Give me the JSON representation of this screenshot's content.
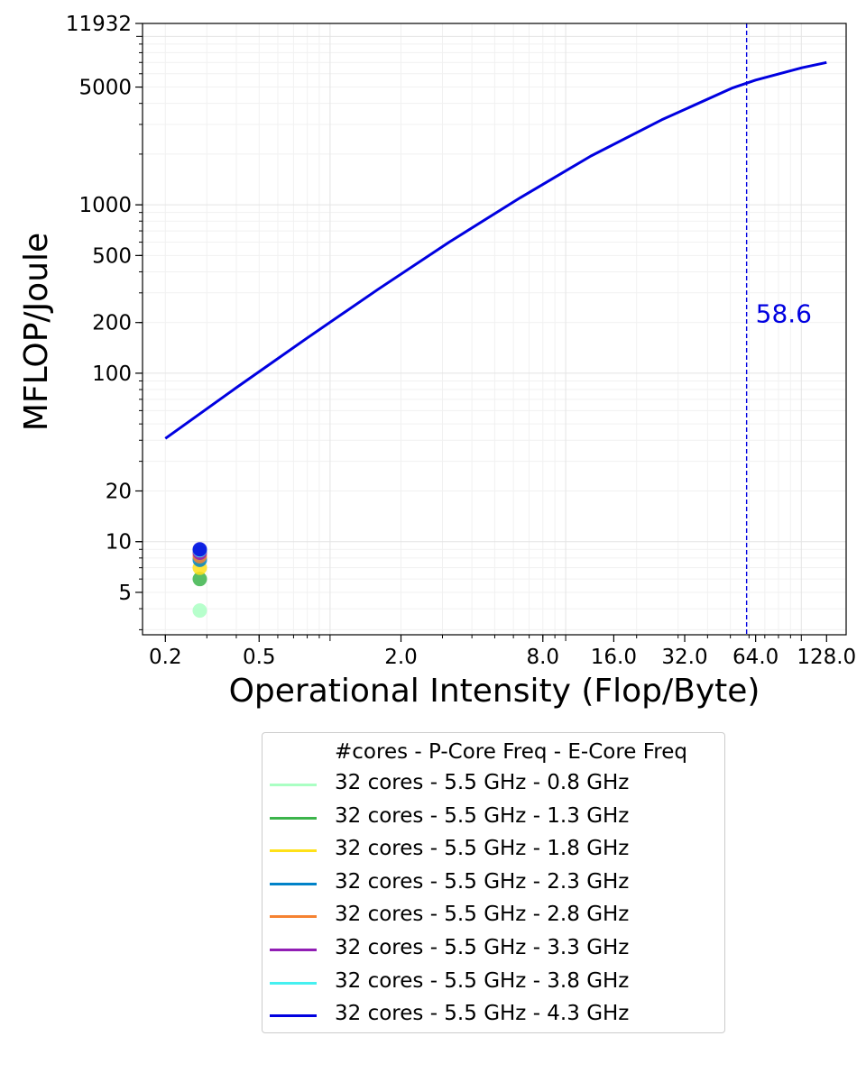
{
  "chart_data": {
    "type": "line",
    "xlabel": "Operational Intensity (Flop/Byte)",
    "ylabel": "MFLOP/Joule",
    "x_scale": "log",
    "y_scale": "log",
    "xlim": [
      0.16,
      155
    ],
    "ylim": [
      2.8,
      11932
    ],
    "x_ticks": [
      0.2,
      0.5,
      2.0,
      8.0,
      16.0,
      32.0,
      64.0,
      128.0
    ],
    "x_tick_labels": [
      "0.2",
      "0.5",
      "2.0",
      "8.0",
      "16.0",
      "32.0",
      "64.0",
      "128.0"
    ],
    "y_ticks": [
      5,
      10,
      20,
      100,
      200,
      500,
      1000,
      5000,
      11932
    ],
    "y_tick_labels": [
      "5",
      "10",
      "20",
      "100",
      "200",
      "500",
      "1000",
      "5000",
      "11932"
    ],
    "grid": true,
    "legend_title": "#cores - P-Core Freq - E-Core Freq",
    "legend_position": "below",
    "series": [
      {
        "name": "32 cores - 5.5 GHz - 0.8 GHz",
        "color": "#aaffc3",
        "point": {
          "x": 0.28,
          "y": 3.9
        }
      },
      {
        "name": "32 cores - 5.5 GHz - 1.3 GHz",
        "color": "#3cb44b",
        "point": {
          "x": 0.28,
          "y": 6.0
        }
      },
      {
        "name": "32 cores - 5.5 GHz - 1.8 GHz",
        "color": "#ffe119",
        "point": {
          "x": 0.28,
          "y": 7.0
        }
      },
      {
        "name": "32 cores - 5.5 GHz - 2.3 GHz",
        "color": "#0082c8",
        "point": {
          "x": 0.28,
          "y": 7.8
        }
      },
      {
        "name": "32 cores - 5.5 GHz - 2.8 GHz",
        "color": "#f58231",
        "point": {
          "x": 0.28,
          "y": 8.2
        }
      },
      {
        "name": "32 cores - 5.5 GHz - 3.3 GHz",
        "color": "#911eb4",
        "point": {
          "x": 0.28,
          "y": 8.6
        }
      },
      {
        "name": "32 cores - 5.5 GHz - 3.8 GHz",
        "color": "#46f0f0",
        "point": {
          "x": 0.28,
          "y": 8.9
        }
      },
      {
        "name": "32 cores - 5.5 GHz - 4.3 GHz",
        "color": "#0000e0",
        "point": {
          "x": 0.28,
          "y": 9.0
        }
      }
    ],
    "roofline": {
      "color": "#0000e0",
      "x": [
        0.2,
        0.4,
        0.8,
        1.6,
        3.2,
        6.4,
        12.8,
        25.6,
        51.2,
        64.0,
        100.0,
        128.0
      ],
      "y": [
        41,
        82,
        162,
        315,
        600,
        1100,
        1950,
        3200,
        4950,
        5500,
        6500,
        7000
      ]
    },
    "vline": {
      "x": 58.6,
      "label": "58.6",
      "color": "#0000e0",
      "style": "dashed"
    }
  }
}
